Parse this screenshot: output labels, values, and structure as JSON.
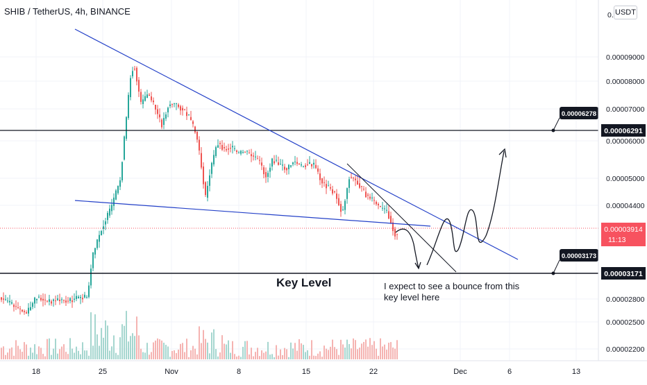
{
  "header": {
    "title": "SHIB / TetherUS, 4h, BINANCE",
    "currency_button": "USDT"
  },
  "chart_data": {
    "type": "candlestick",
    "symbol": "SHIB / TetherUS",
    "interval": "4h",
    "exchange": "BINANCE",
    "y_axis_labels": [
      "0.00009000",
      "0.00008000",
      "0.00007000",
      "0.00006000",
      "0.00005000",
      "0.00004400",
      "0.00002800",
      "0.00002500",
      "0.00002200"
    ],
    "y_axis_partial_label": "0.0",
    "x_axis_labels": [
      "18",
      "25",
      "Nov",
      "8",
      "15",
      "22",
      "Dec",
      "6",
      "13"
    ],
    "last_price": "0.00003914",
    "countdown": "11:13",
    "levels": [
      {
        "value": "0.00006291",
        "callout": "0.00006278"
      },
      {
        "value": "0.00003171",
        "callout": "0.00003173"
      }
    ],
    "annotations": {
      "key_level": "Key Level",
      "note_line1": "I expect to see a bounce from this",
      "note_line2": "key level here"
    },
    "colors": {
      "up": "#26a69a",
      "down": "#ef5350",
      "trendline": "#2340c8",
      "level_line": "#131722",
      "price_line": "#f7525f"
    }
  }
}
